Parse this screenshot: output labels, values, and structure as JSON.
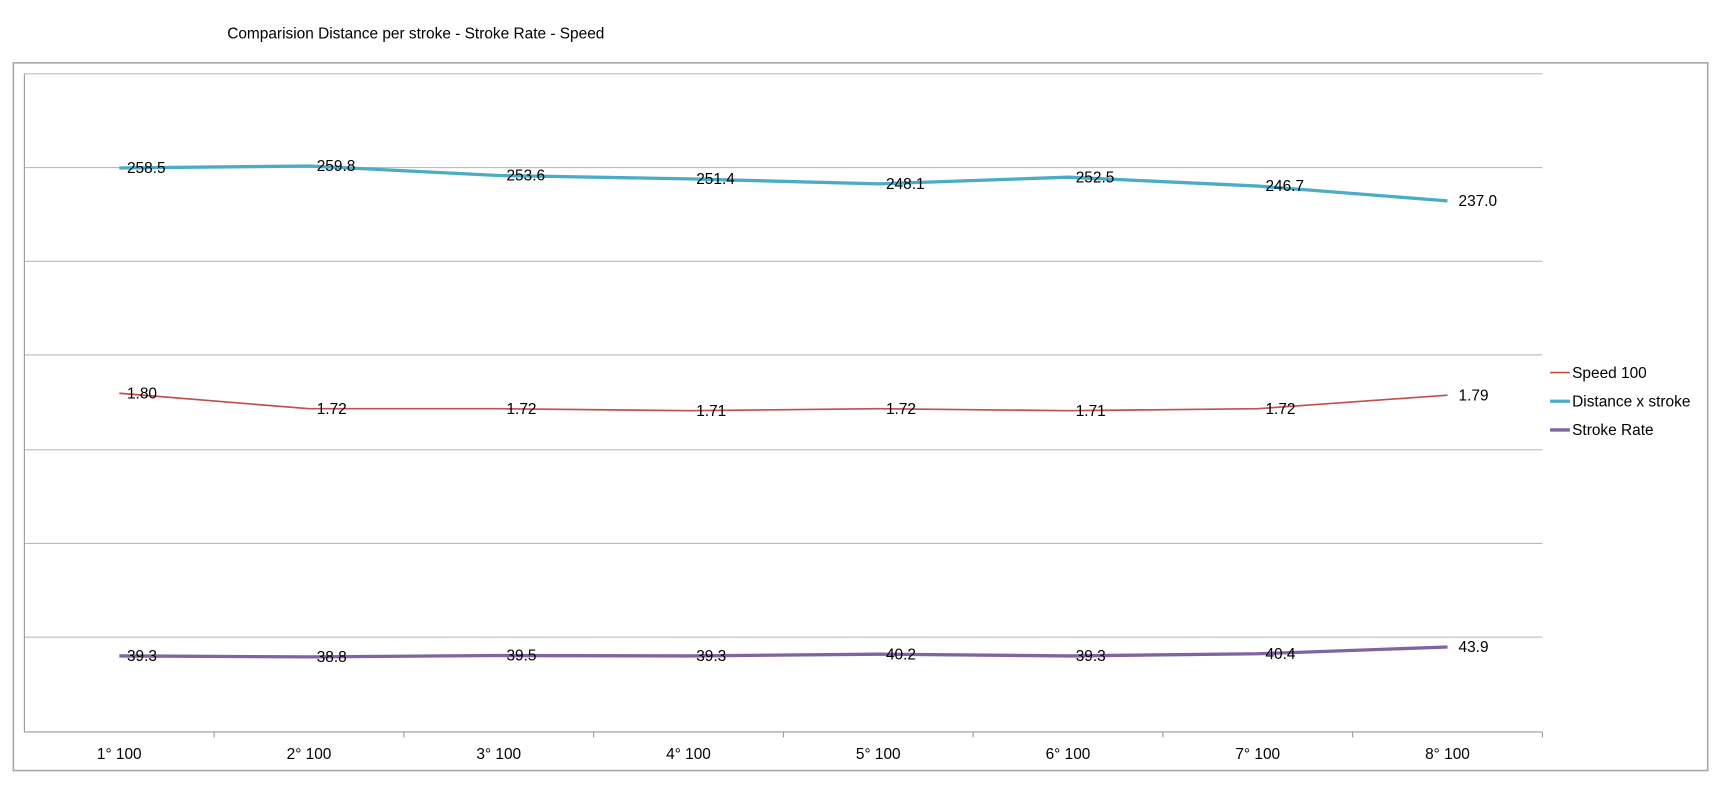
{
  "chart_data": {
    "type": "line",
    "title": "Comparision  Distance per stroke - Stroke Rate - Speed",
    "categories": [
      "1° 100",
      "2° 100",
      "3° 100",
      "4° 100",
      "5° 100",
      "6° 100",
      "7° 100",
      "8° 100"
    ],
    "series": [
      {
        "name": "Speed 100",
        "color": "#c0504d",
        "width": 1.5,
        "ylim": [
          0.05,
          3.45
        ],
        "values": [
          1.8,
          1.72,
          1.72,
          1.71,
          1.72,
          1.71,
          1.72,
          1.79
        ],
        "value_labels": [
          "1.80",
          "1.72",
          "1.72",
          "1.71",
          "1.72",
          "1.71",
          "1.72",
          "1.79"
        ]
      },
      {
        "name": "Distance x stroke",
        "color": "#4bacc6",
        "width": 3,
        "ylim": [
          -110,
          320
        ],
        "values": [
          258.5,
          259.8,
          253.6,
          251.4,
          248.1,
          252.5,
          246.7,
          237
        ],
        "value_labels": [
          "258.5",
          "259.8",
          "253.6",
          "251.4",
          "248.1",
          "252.5",
          "246.7",
          "237.0"
        ]
      },
      {
        "name": "Stroke Rate",
        "color": "#8064a2",
        "width": 3,
        "ylim": [
          0,
          340
        ],
        "values": [
          39.3,
          38.8,
          39.5,
          39.3,
          40.2,
          39.3,
          40.4,
          43.9
        ],
        "value_labels": [
          "39.3",
          "38.8",
          "39.5",
          "39.3",
          "40.2",
          "39.3",
          "40.4",
          "43.9"
        ]
      }
    ],
    "grid": true
  }
}
